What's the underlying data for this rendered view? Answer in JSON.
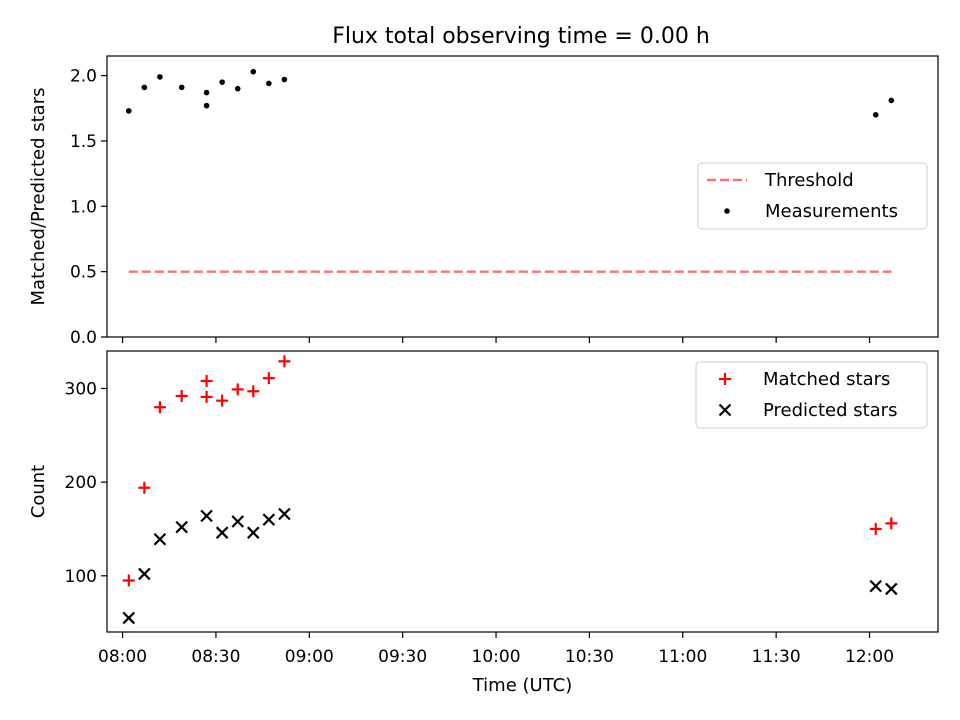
{
  "chart_data": [
    {
      "type": "scatter",
      "title": "Flux total observing time = 0.00 h",
      "ylabel": "Matched/Predicted stars",
      "ylim": [
        0.0,
        2.15
      ],
      "yticks": [
        "0.0",
        "0.5",
        "1.0",
        "1.5",
        "2.0"
      ],
      "series": [
        {
          "name": "Threshold",
          "style": "dashed-line",
          "color": "#ff7070",
          "points": [
            [
              "08:02",
              0.5
            ],
            [
              "12:07",
              0.5
            ]
          ]
        },
        {
          "name": "Measurements",
          "style": "dot",
          "color": "#000000",
          "points": [
            [
              "08:02",
              1.73
            ],
            [
              "08:07",
              1.91
            ],
            [
              "08:12",
              1.99
            ],
            [
              "08:19",
              1.91
            ],
            [
              "08:27",
              1.87
            ],
            [
              "08:27",
              1.77
            ],
            [
              "08:32",
              1.95
            ],
            [
              "08:37",
              1.9
            ],
            [
              "08:42",
              2.03
            ],
            [
              "08:47",
              1.94
            ],
            [
              "08:52",
              1.97
            ],
            [
              "12:02",
              1.7
            ],
            [
              "12:07",
              1.81
            ]
          ]
        }
      ],
      "legend": "center-right"
    },
    {
      "type": "scatter",
      "xlabel": "Time (UTC)",
      "ylabel": "Count",
      "ylim": [
        40,
        340
      ],
      "yticks": [
        "100",
        "200",
        "300"
      ],
      "xticks": [
        "08:00",
        "08:30",
        "09:00",
        "09:30",
        "10:00",
        "10:30",
        "11:00",
        "11:30",
        "12:00"
      ],
      "xlim": [
        "07:55",
        "12:22"
      ],
      "series": [
        {
          "name": "Matched stars",
          "style": "plus",
          "color": "#ff0000",
          "points": [
            [
              "08:02",
              95
            ],
            [
              "08:07",
              194
            ],
            [
              "08:12",
              280
            ],
            [
              "08:19",
              292
            ],
            [
              "08:27",
              308
            ],
            [
              "08:27",
              291
            ],
            [
              "08:32",
              287
            ],
            [
              "08:37",
              299
            ],
            [
              "08:42",
              297
            ],
            [
              "08:47",
              311
            ],
            [
              "08:52",
              329
            ],
            [
              "12:02",
              150
            ],
            [
              "12:07",
              156
            ]
          ]
        },
        {
          "name": "Predicted stars",
          "style": "x",
          "color": "#000000",
          "points": [
            [
              "08:02",
              55
            ],
            [
              "08:07",
              102
            ],
            [
              "08:12",
              139
            ],
            [
              "08:19",
              152
            ],
            [
              "08:27",
              164
            ],
            [
              "08:32",
              146
            ],
            [
              "08:37",
              158
            ],
            [
              "08:42",
              146
            ],
            [
              "08:47",
              160
            ],
            [
              "08:52",
              166
            ],
            [
              "12:02",
              89
            ],
            [
              "12:07",
              86
            ]
          ]
        }
      ],
      "legend": "top-right"
    }
  ]
}
